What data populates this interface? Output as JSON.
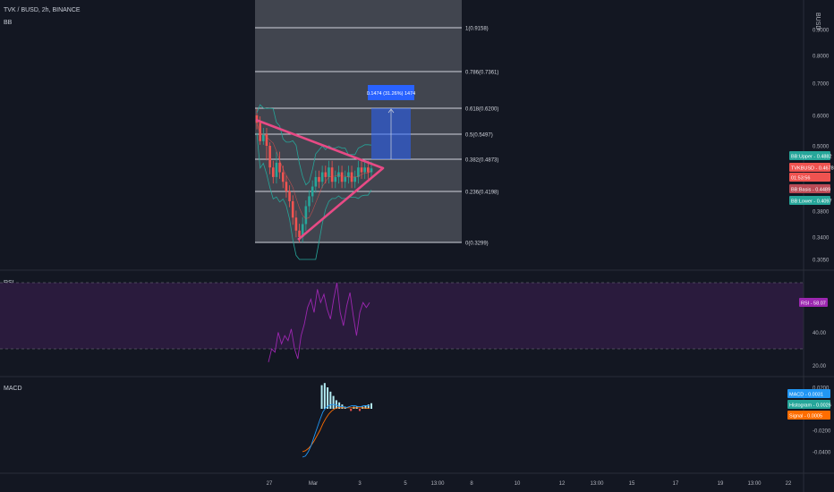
{
  "header": {
    "symbol_line": "TVK / BUSD, 2h, BINANCE",
    "indicator_bb": "BB",
    "indicator_rsi": "RSI",
    "indicator_macd": "MACD"
  },
  "colors": {
    "background": "#131722",
    "fib_zone": "#4a4d57",
    "fib_line": "#d1d4dc",
    "triangle": "#e84a85",
    "measure_box": "#2962ff",
    "rsi_band": "#2a1b3d",
    "rsi_line": "#9c27b0",
    "bb_line": "#26a69a",
    "candle_up": "#26a69a",
    "candle_down": "#ef5350",
    "macd_line": "#2196f3",
    "signal_line": "#ff6d00",
    "hist_bar": "#b2ebf2"
  },
  "chart_data": [
    {
      "type": "candlestick",
      "name": "TVKBUSD price with Bollinger Bands and Fibonacci retracement",
      "y_axis_label": "BUSD",
      "y_ticks": [
        "0.9000",
        "0.8000",
        "0.7000",
        "0.6000",
        "0.5000",
        "0.3800",
        "0.3400",
        "0.3050"
      ],
      "y_ticks_labeled": [
        0.9,
        0.8,
        0.7,
        0.6,
        0.5,
        0.38,
        0.34,
        0.305
      ],
      "fib_levels": [
        {
          "label": "1(0.9158)",
          "value": 0.9158
        },
        {
          "label": "0.786(0.7361)",
          "value": 0.7361
        },
        {
          "label": "0.618(0.6200)",
          "value": 0.62
        },
        {
          "label": "0.5(0.5497)",
          "value": 0.5497
        },
        {
          "label": "0.382(0.4873)",
          "value": 0.4873
        },
        {
          "label": "0.236(0.4198)",
          "value": 0.4198
        },
        {
          "label": "0(0.3299)",
          "value": 0.3299
        }
      ],
      "measure_label": "0.1474 (31.26%) 1474",
      "price_tags": [
        {
          "label": "BB:Upper - 0.4882",
          "color": "#26a69a"
        },
        {
          "label": "TVKBUSD - 0.4678",
          "color": "#ef5350"
        },
        {
          "label": "01:53:56",
          "color": "#ef5350"
        },
        {
          "label": "BB:Basis - 0.4489",
          "color": "#b94a55"
        },
        {
          "label": "BB:Lower - 0.4097",
          "color": "#26a69a"
        }
      ],
      "close_series": [
        0.58,
        0.52,
        0.55,
        0.5,
        0.47,
        0.45,
        0.48,
        0.46,
        0.44,
        0.42,
        0.4,
        0.37,
        0.35,
        0.34,
        0.36,
        0.39,
        0.41,
        0.43,
        0.45,
        0.44,
        0.46,
        0.45,
        0.47,
        0.44,
        0.45,
        0.46,
        0.44,
        0.45,
        0.46,
        0.44,
        0.45,
        0.47,
        0.46,
        0.47,
        0.46,
        0.468
      ]
    },
    {
      "type": "line",
      "name": "RSI",
      "y_ticks": [
        "40.00",
        "20.00"
      ],
      "y_ticks_labeled": [
        40,
        20
      ],
      "band": [
        30,
        70
      ],
      "value_tag": "RSI - 58.07",
      "values": [
        22,
        30,
        28,
        40,
        33,
        38,
        35,
        42,
        30,
        24,
        38,
        45,
        55,
        60,
        52,
        66,
        58,
        63,
        54,
        48,
        60,
        70,
        52,
        44,
        56,
        64,
        50,
        38,
        52,
        58,
        55,
        58
      ]
    },
    {
      "type": "bar",
      "name": "MACD",
      "y_ticks": [
        "0.0200",
        "-0.0200",
        "-0.0400"
      ],
      "y_ticks_labeled": [
        0.02,
        -0.02,
        -0.04
      ],
      "value_tags": [
        {
          "label": "MACD - 0.0031",
          "color": "#2196f3"
        },
        {
          "label": "Histogram - 0.0026",
          "color": "#26a69a"
        },
        {
          "label": "Signal - 0.0005",
          "color": "#ff6d00"
        }
      ],
      "macd": [
        -0.045,
        -0.044,
        -0.04,
        -0.034,
        -0.026,
        -0.018,
        -0.01,
        -0.003,
        0.001,
        0.003,
        0.004,
        0.004,
        0.003,
        0.002,
        0.002,
        0.001,
        0.002,
        0.003,
        0.003,
        0.002,
        0.002,
        0.003,
        0.003,
        0.003
      ],
      "signal": [
        -0.04,
        -0.039,
        -0.037,
        -0.034,
        -0.03,
        -0.025,
        -0.02,
        -0.014,
        -0.009,
        -0.005,
        -0.002,
        0.0,
        0.001,
        0.001,
        0.001,
        0.001,
        0.001,
        0.001,
        0.001,
        0.001,
        0.001,
        0.0008,
        0.0006,
        0.0005
      ],
      "histogram": [
        0.0,
        0.0,
        0.0,
        0.0,
        0.0,
        0.0,
        0.011,
        0.012,
        0.01,
        0.008,
        0.006,
        0.004,
        0.003,
        0.002,
        0.001,
        0.0,
        -0.001,
        0.001,
        0.001,
        -0.001,
        0.001,
        0.0015,
        0.002,
        0.0026
      ]
    }
  ],
  "x_axis": {
    "ticks": [
      "27",
      "Mar",
      "3",
      "5",
      "13:00",
      "8",
      "10",
      "12",
      "13:00",
      "15",
      "17",
      "19",
      "13:00",
      "22"
    ]
  }
}
